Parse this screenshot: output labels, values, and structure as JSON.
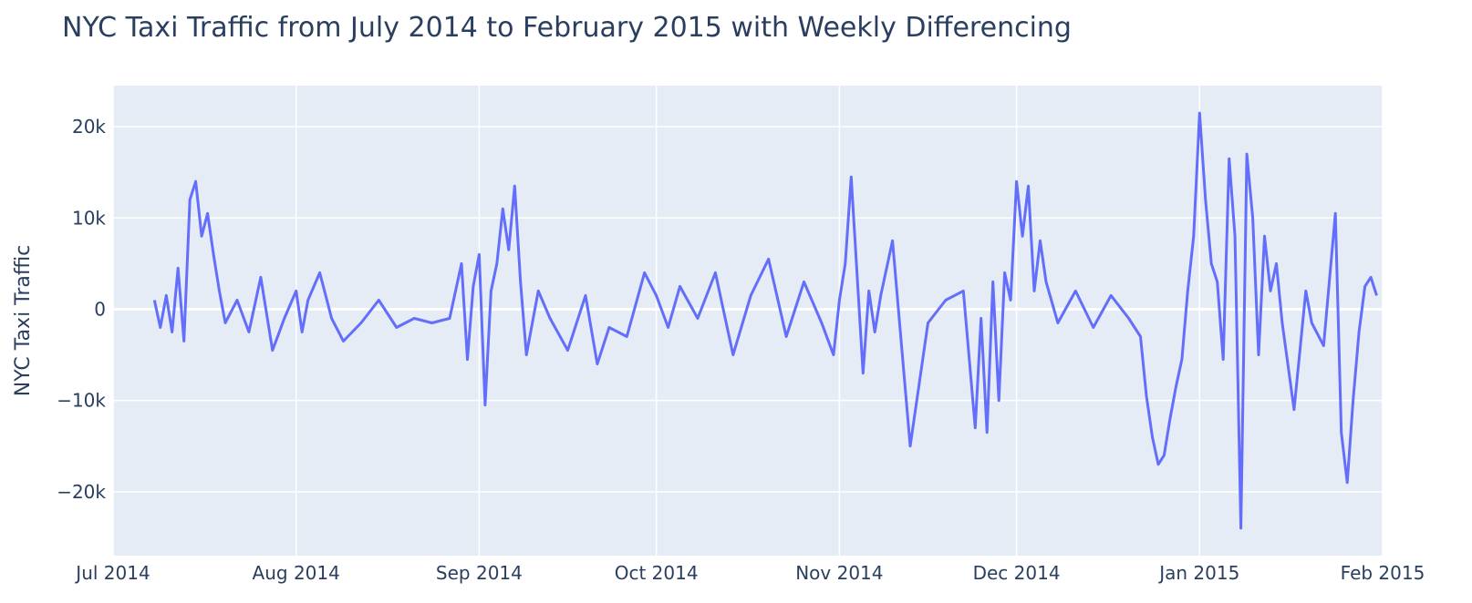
{
  "chart_data": {
    "type": "line",
    "title": "NYC Taxi Traffic from July 2014 to February 2015 with Weekly Differencing",
    "xlabel": "",
    "ylabel": "NYC Taxi Traffic",
    "x_range": [
      "2014-07-01",
      "2015-02-01"
    ],
    "ylim": [
      -27000,
      24500
    ],
    "grid": true,
    "legend": "none",
    "x_ticks": [
      {
        "date": "2014-07-01",
        "label": "Jul 2014"
      },
      {
        "date": "2014-08-01",
        "label": "Aug 2014"
      },
      {
        "date": "2014-09-01",
        "label": "Sep 2014"
      },
      {
        "date": "2014-10-01",
        "label": "Oct 2014"
      },
      {
        "date": "2014-11-01",
        "label": "Nov 2014"
      },
      {
        "date": "2014-12-01",
        "label": "Dec 2014"
      },
      {
        "date": "2015-01-01",
        "label": "Jan 2015"
      },
      {
        "date": "2015-02-01",
        "label": "Feb 2015"
      }
    ],
    "y_ticks": [
      {
        "value": 20000,
        "label": "20k"
      },
      {
        "value": 10000,
        "label": "10k"
      },
      {
        "value": 0,
        "label": "0"
      },
      {
        "value": -10000,
        "label": "−10k"
      },
      {
        "value": -20000,
        "label": "−20k"
      }
    ],
    "colors": {
      "line": "#636efa",
      "plot_bg": "#e5ecf6",
      "grid": "#ffffff",
      "text": "#2a3f5f"
    },
    "series": [
      {
        "x": [
          "2014-07-08",
          "2014-07-09",
          "2014-07-10",
          "2014-07-11",
          "2014-07-12",
          "2014-07-13",
          "2014-07-14",
          "2014-07-15",
          "2014-07-16",
          "2014-07-17",
          "2014-07-18",
          "2014-07-19",
          "2014-07-20",
          "2014-07-22",
          "2014-07-24",
          "2014-07-26",
          "2014-07-28",
          "2014-07-30",
          "2014-08-01",
          "2014-08-02",
          "2014-08-03",
          "2014-08-05",
          "2014-08-07",
          "2014-08-09",
          "2014-08-12",
          "2014-08-15",
          "2014-08-18",
          "2014-08-21",
          "2014-08-24",
          "2014-08-27",
          "2014-08-29",
          "2014-08-30",
          "2014-08-31",
          "2014-09-01",
          "2014-09-02",
          "2014-09-03",
          "2014-09-04",
          "2014-09-05",
          "2014-09-06",
          "2014-09-07",
          "2014-09-08",
          "2014-09-09",
          "2014-09-11",
          "2014-09-13",
          "2014-09-16",
          "2014-09-19",
          "2014-09-21",
          "2014-09-23",
          "2014-09-26",
          "2014-09-29",
          "2014-10-01",
          "2014-10-03",
          "2014-10-05",
          "2014-10-08",
          "2014-10-11",
          "2014-10-14",
          "2014-10-17",
          "2014-10-20",
          "2014-10-23",
          "2014-10-26",
          "2014-10-29",
          "2014-10-31",
          "2014-11-01",
          "2014-11-02",
          "2014-11-03",
          "2014-11-05",
          "2014-11-06",
          "2014-11-07",
          "2014-11-08",
          "2014-11-10",
          "2014-11-13",
          "2014-11-16",
          "2014-11-19",
          "2014-11-22",
          "2014-11-24",
          "2014-11-25",
          "2014-11-26",
          "2014-11-27",
          "2014-11-28",
          "2014-11-29",
          "2014-11-30",
          "2014-12-01",
          "2014-12-02",
          "2014-12-03",
          "2014-12-04",
          "2014-12-05",
          "2014-12-06",
          "2014-12-08",
          "2014-12-11",
          "2014-12-14",
          "2014-12-17",
          "2014-12-20",
          "2014-12-22",
          "2014-12-23",
          "2014-12-24",
          "2014-12-25",
          "2014-12-26",
          "2014-12-27",
          "2014-12-28",
          "2014-12-29",
          "2014-12-30",
          "2014-12-31",
          "2015-01-01",
          "2015-01-02",
          "2015-01-03",
          "2015-01-04",
          "2015-01-05",
          "2015-01-06",
          "2015-01-07",
          "2015-01-08",
          "2015-01-09",
          "2015-01-10",
          "2015-01-11",
          "2015-01-12",
          "2015-01-13",
          "2015-01-14",
          "2015-01-15",
          "2015-01-17",
          "2015-01-19",
          "2015-01-20",
          "2015-01-22",
          "2015-01-24",
          "2015-01-25",
          "2015-01-26",
          "2015-01-27",
          "2015-01-28",
          "2015-01-29",
          "2015-01-30",
          "2015-01-31"
        ],
        "y": [
          1000,
          -2000,
          1500,
          -2500,
          4500,
          -3500,
          12000,
          14000,
          8000,
          10500,
          6000,
          2000,
          -1500,
          1000,
          -2500,
          3500,
          -4500,
          -1000,
          2000,
          -2500,
          1000,
          4000,
          -1000,
          -3500,
          -1500,
          1000,
          -2000,
          -1000,
          -1500,
          -1000,
          5000,
          -5500,
          2500,
          6000,
          -10500,
          2000,
          5000,
          11000,
          6500,
          13500,
          3000,
          -5000,
          2000,
          -1000,
          -4500,
          1500,
          -6000,
          -2000,
          -3000,
          4000,
          1500,
          -2000,
          2500,
          -1000,
          4000,
          -5000,
          1500,
          5500,
          -3000,
          3000,
          -1500,
          -5000,
          1000,
          5000,
          14500,
          -7000,
          2000,
          -2500,
          1500,
          7500,
          -15000,
          -1500,
          1000,
          2000,
          -13000,
          -1000,
          -13500,
          3000,
          -10000,
          4000,
          1000,
          14000,
          8000,
          13500,
          2000,
          7500,
          3000,
          -1500,
          2000,
          -2000,
          1500,
          -1000,
          -3000,
          -9500,
          -14000,
          -17000,
          -16000,
          -12000,
          -8500,
          -5500,
          2000,
          8000,
          21500,
          12000,
          5000,
          3000,
          -5500,
          16500,
          8000,
          -24000,
          17000,
          10000,
          -5000,
          8000,
          2000,
          5000,
          -1500,
          -11000,
          2000,
          -1500,
          -4000,
          10500,
          -13500,
          -19000,
          -10000,
          -2500,
          2500,
          3500,
          1500
        ]
      }
    ]
  }
}
